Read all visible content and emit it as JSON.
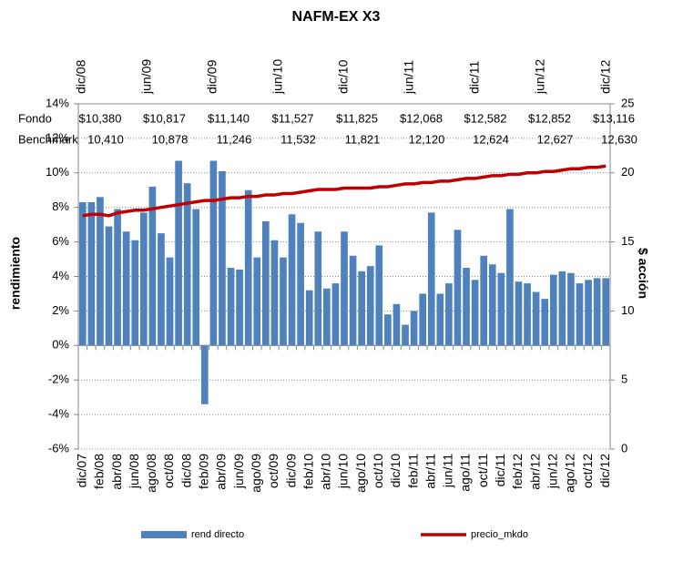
{
  "chart_data": {
    "type": "bar",
    "title": "NAFM-EX X3",
    "y_label": "rendimiento",
    "y2_label": "$ acción",
    "categories": [
      "dic/07",
      null,
      "feb/08",
      null,
      "abr/08",
      null,
      "jun/08",
      null,
      "ago/08",
      null,
      "oct/08",
      null,
      "dic/08",
      null,
      "feb/09",
      null,
      "abr/09",
      null,
      "jun/09",
      null,
      "ago/09",
      null,
      "oct/09",
      null,
      "dic/09",
      null,
      "feb/10",
      null,
      "abr/10",
      null,
      "jun/10",
      null,
      "ago/10",
      null,
      "oct/10",
      null,
      "dic/10",
      null,
      "feb/11",
      null,
      "abr/11",
      null,
      "jun/11",
      null,
      "ago/11",
      null,
      "oct/11",
      null,
      "dic/11",
      null,
      "feb/12",
      null,
      "abr/12",
      null,
      "jun/12",
      null,
      "ago/12",
      null,
      "oct/12",
      null,
      "dic/12"
    ],
    "top_labels": [
      "dic/08",
      "jun/09",
      "dic/09",
      "jun/10",
      "dic/10",
      "jun/11",
      "dic/11",
      "jun/12",
      "dic/12"
    ],
    "series": [
      {
        "name": "rend directo",
        "color": "#4F81BD",
        "axis": "y",
        "values": [
          8.3,
          8.3,
          8.6,
          6.9,
          7.9,
          6.6,
          6.1,
          7.7,
          9.2,
          6.5,
          5.1,
          10.7,
          9.4,
          7.9,
          -3.4,
          10.7,
          10.1,
          4.5,
          4.4,
          9.0,
          5.1,
          7.2,
          6.1,
          5.1,
          7.6,
          7.1,
          3.2,
          6.6,
          3.3,
          3.6,
          6.6,
          5.2,
          4.3,
          4.6,
          5.8,
          1.8,
          2.4,
          1.2,
          2.0,
          3.0,
          7.7,
          3.0,
          3.6,
          6.7,
          4.5,
          3.8,
          5.2,
          4.7,
          4.2,
          7.9,
          3.7,
          3.6,
          3.1,
          2.7,
          4.1,
          4.3,
          4.2,
          3.6,
          3.8,
          3.9,
          3.9
        ]
      },
      {
        "name": "precio_mkdo",
        "color": "#C00000",
        "axis": "y2",
        "values": [
          16.9,
          17.0,
          17.0,
          16.9,
          17.1,
          17.2,
          17.3,
          17.3,
          17.4,
          17.5,
          17.6,
          17.7,
          17.8,
          17.9,
          18.0,
          18.0,
          18.1,
          18.2,
          18.2,
          18.3,
          18.3,
          18.4,
          18.4,
          18.5,
          18.5,
          18.6,
          18.7,
          18.8,
          18.8,
          18.8,
          18.9,
          18.9,
          18.9,
          18.9,
          19.0,
          19.0,
          19.1,
          19.2,
          19.2,
          19.3,
          19.3,
          19.4,
          19.4,
          19.5,
          19.6,
          19.6,
          19.7,
          19.8,
          19.8,
          19.9,
          19.9,
          20.0,
          20.0,
          20.1,
          20.1,
          20.2,
          20.3,
          20.3,
          20.4,
          20.4,
          20.5
        ]
      }
    ],
    "ylim": [
      -6,
      14
    ],
    "yticks": [
      {
        "value": -6,
        "label": "-6%"
      },
      {
        "value": -4,
        "label": "-4%"
      },
      {
        "value": -2,
        "label": "-2%"
      },
      {
        "value": 0,
        "label": "0%"
      },
      {
        "value": 2,
        "label": "2%"
      },
      {
        "value": 4,
        "label": "4%"
      },
      {
        "value": 6,
        "label": "6%"
      },
      {
        "value": 8,
        "label": "8%"
      },
      {
        "value": 10,
        "label": "10%"
      },
      {
        "value": 12,
        "label": "12%"
      },
      {
        "value": 14,
        "label": "14%"
      }
    ],
    "y2lim": [
      0,
      25
    ],
    "y2ticks": [
      0,
      5,
      10,
      15,
      20,
      25
    ],
    "grid": true,
    "legend": "bottom",
    "annotations": {
      "fondo_label": "Fondo",
      "fondo": [
        "$10,380",
        "$10,817",
        "$11,140",
        "$11,527",
        "$11,825",
        "$12,068",
        "$12,582",
        "$12,852",
        "$13,116"
      ],
      "benchmark_label": "Benchmark",
      "benchmark": [
        "10,410",
        "10,878",
        "11,246",
        "11,532",
        "11,821",
        "12,120",
        "12,624",
        "12,627",
        "12,630"
      ]
    }
  }
}
